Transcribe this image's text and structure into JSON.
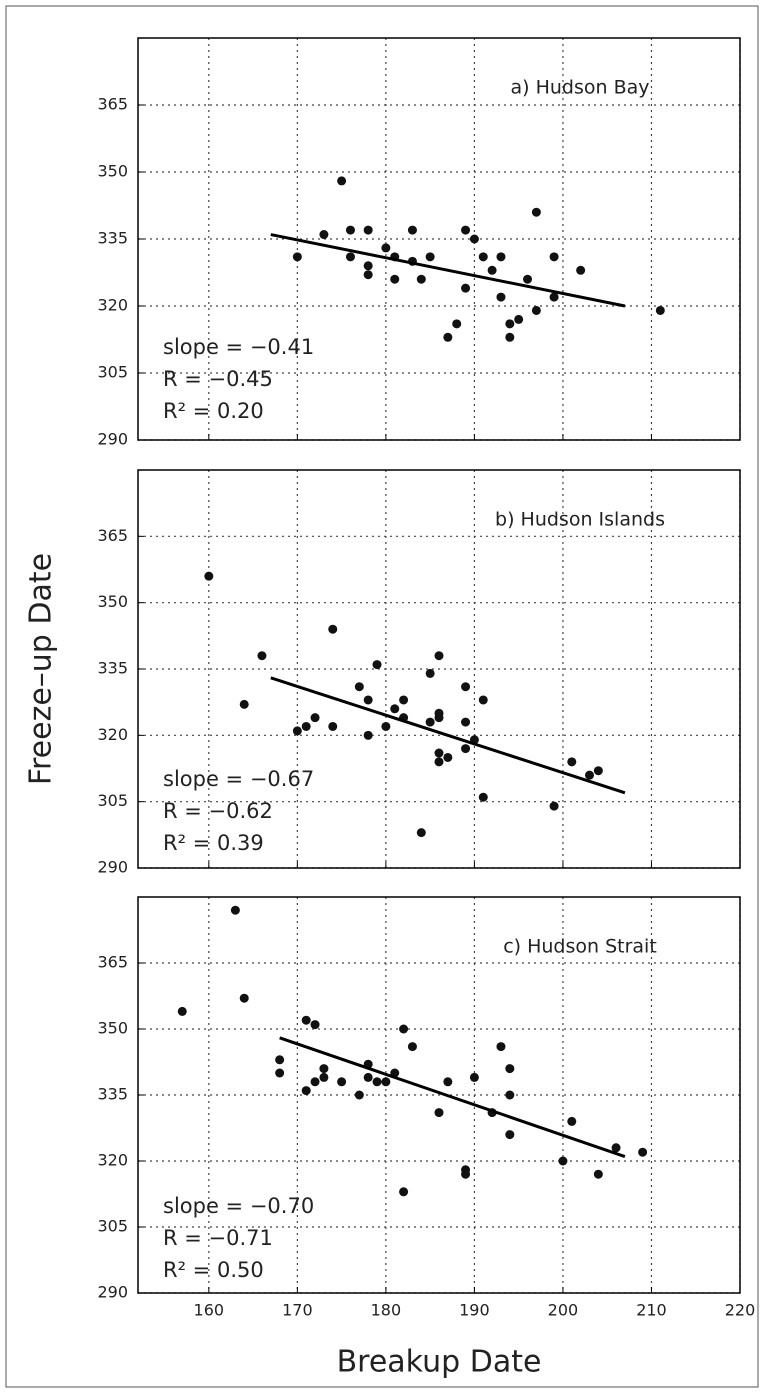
{
  "chart_data": [
    {
      "type": "scatter",
      "title": "a) Hudson Bay",
      "color": "#111111",
      "grid": true,
      "x": [
        170,
        173,
        175,
        176,
        176,
        178,
        178,
        178,
        180,
        181,
        181,
        183,
        183,
        184,
        185,
        187,
        188,
        189,
        189,
        190,
        191,
        192,
        193,
        193,
        194,
        194,
        195,
        196,
        197,
        197,
        199,
        199,
        202,
        211
      ],
      "values": [
        331,
        336,
        348,
        337,
        331,
        337,
        329,
        327,
        333,
        331,
        326,
        337,
        330,
        326,
        331,
        313,
        316,
        337,
        324,
        335,
        331,
        328,
        331,
        322,
        316,
        313,
        317,
        326,
        341,
        319,
        331,
        322,
        328,
        319
      ],
      "trend_line": {
        "x": [
          167,
          207
        ],
        "values": [
          336,
          320
        ]
      },
      "annotations": [
        "slope = −0.41",
        "R = −0.45",
        "R² = 0.20"
      ],
      "xlim": [
        152,
        220
      ],
      "ylim": [
        290,
        380
      ],
      "xticks": [
        160,
        170,
        180,
        190,
        200,
        210,
        220
      ],
      "yticks": [
        290,
        305,
        320,
        335,
        350,
        365
      ]
    },
    {
      "type": "scatter",
      "title": "b) Hudson Islands",
      "color": "#111111",
      "grid": true,
      "ylabel": "Freeze–up Date",
      "x": [
        160,
        164,
        166,
        170,
        171,
        172,
        174,
        174,
        177,
        178,
        178,
        179,
        180,
        181,
        182,
        182,
        185,
        185,
        186,
        186,
        186,
        186,
        186,
        187,
        189,
        189,
        189,
        190,
        191,
        191,
        184,
        199,
        201,
        203,
        204
      ],
      "values": [
        356,
        327,
        338,
        321,
        322,
        324,
        322,
        344,
        331,
        320,
        328,
        336,
        322,
        326,
        328,
        324,
        334,
        323,
        338,
        325,
        324,
        316,
        314,
        315,
        331,
        323,
        317,
        319,
        306,
        328,
        298,
        304,
        314,
        311,
        312
      ],
      "trend_line": {
        "x": [
          167,
          207
        ],
        "values": [
          333,
          307
        ]
      },
      "annotations": [
        "slope = −0.67",
        "R = −0.62",
        "R² = 0.39"
      ],
      "xlim": [
        152,
        220
      ],
      "ylim": [
        290,
        380
      ],
      "xticks": [
        160,
        170,
        180,
        190,
        200,
        210,
        220
      ],
      "yticks": [
        290,
        305,
        320,
        335,
        350,
        365
      ]
    },
    {
      "type": "scatter",
      "title": "c) Hudson Strait",
      "color": "#111111",
      "grid": true,
      "xlabel": "Breakup Date",
      "x": [
        157,
        163,
        164,
        168,
        168,
        171,
        171,
        172,
        172,
        173,
        173,
        175,
        177,
        178,
        178,
        179,
        180,
        181,
        182,
        182,
        183,
        186,
        187,
        189,
        189,
        190,
        192,
        193,
        194,
        194,
        194,
        200,
        201,
        204,
        206,
        209
      ],
      "values": [
        354,
        377,
        357,
        340,
        343,
        336,
        352,
        338,
        351,
        339,
        341,
        338,
        335,
        339,
        342,
        338,
        338,
        340,
        350,
        313,
        346,
        331,
        338,
        318,
        317,
        339,
        331,
        346,
        341,
        335,
        326,
        320,
        329,
        317,
        323,
        322
      ],
      "trend_line": {
        "x": [
          168,
          207
        ],
        "values": [
          348,
          321
        ]
      },
      "annotations": [
        "slope = −0.70",
        "R = −0.71",
        "R² = 0.50"
      ],
      "xlim": [
        152,
        220
      ],
      "ylim": [
        290,
        380
      ],
      "xticks": [
        160,
        170,
        180,
        190,
        200,
        210,
        220
      ],
      "yticks": [
        290,
        305,
        320,
        335,
        350,
        365
      ]
    }
  ]
}
